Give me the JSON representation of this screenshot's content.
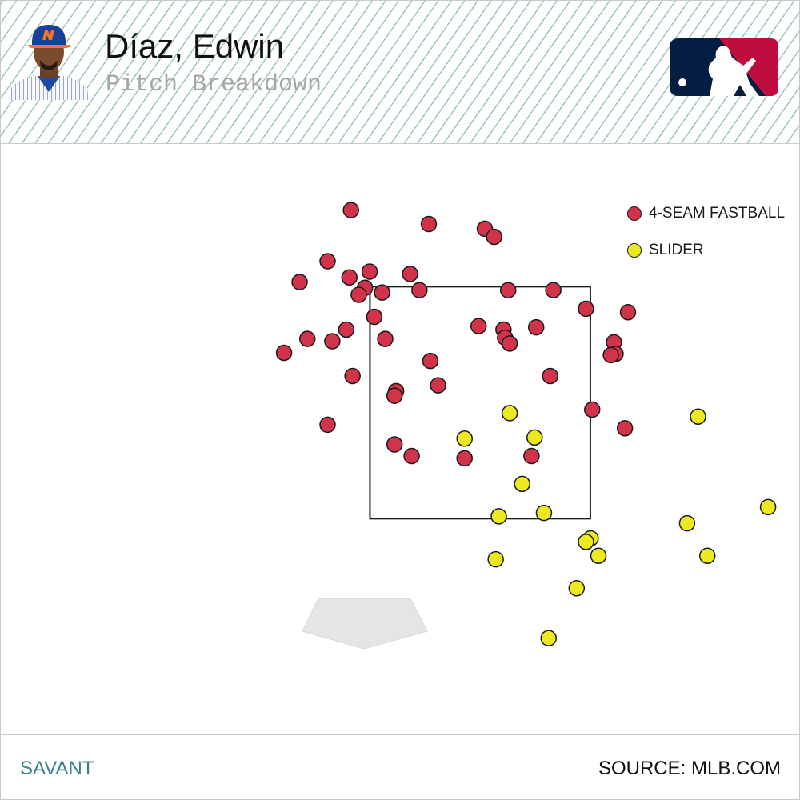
{
  "header": {
    "player_name": "Díaz, Edwin",
    "subtitle": "Pitch Breakdown",
    "logo_icon": "mlb-logo-icon",
    "avatar_icon": "player-headshot-icon"
  },
  "colors": {
    "fastball": "#d1334a",
    "slider": "#ede921",
    "stroke": "#1a1a1a",
    "plate": "#e5e5e5",
    "logo_blue": "#041e42",
    "logo_red": "#bf0d3e",
    "savant": "#3b8087"
  },
  "footer": {
    "left": "SAVANT",
    "right": "SOURCE: MLB.COM"
  },
  "chart_data": {
    "type": "scatter",
    "x_unit": "ft",
    "y_unit": "ft",
    "xlim": [
      -3.08,
      2.05
    ],
    "ylim": [
      -0.36,
      4.73
    ],
    "strike_zone": {
      "x": [
        -0.708,
        0.708
      ],
      "y": [
        1.5,
        3.5
      ]
    },
    "legend": {
      "position": "top-right"
    },
    "series": [
      {
        "name": "4-SEAM FASTBALL",
        "color": "#d1334a",
        "points": [
          [
            -0.83,
            4.16
          ],
          [
            -0.33,
            4.04
          ],
          [
            0.03,
            4.0
          ],
          [
            0.09,
            3.93
          ],
          [
            -0.98,
            3.72
          ],
          [
            -0.71,
            3.63
          ],
          [
            -0.45,
            3.61
          ],
          [
            -0.84,
            3.58
          ],
          [
            -1.16,
            3.54
          ],
          [
            -0.74,
            3.49
          ],
          [
            -0.63,
            3.45
          ],
          [
            -0.78,
            3.43
          ],
          [
            -0.39,
            3.47
          ],
          [
            0.18,
            3.47
          ],
          [
            0.47,
            3.47
          ],
          [
            0.68,
            3.31
          ],
          [
            0.95,
            3.28
          ],
          [
            -0.68,
            3.24
          ],
          [
            -0.86,
            3.13
          ],
          [
            -0.01,
            3.16
          ],
          [
            0.15,
            3.13
          ],
          [
            0.36,
            3.15
          ],
          [
            -0.95,
            3.03
          ],
          [
            0.16,
            3.06
          ],
          [
            0.19,
            3.01
          ],
          [
            -0.61,
            3.05
          ],
          [
            -1.11,
            3.05
          ],
          [
            -1.26,
            2.93
          ],
          [
            0.86,
            3.02
          ],
          [
            0.87,
            2.92
          ],
          [
            -0.32,
            2.86
          ],
          [
            0.84,
            2.91
          ],
          [
            0.45,
            2.73
          ],
          [
            -0.82,
            2.73
          ],
          [
            -0.27,
            2.65
          ],
          [
            -0.54,
            2.6
          ],
          [
            -0.55,
            2.56
          ],
          [
            0.72,
            2.44
          ],
          [
            0.93,
            2.28
          ],
          [
            -0.98,
            2.31
          ],
          [
            -0.55,
            2.14
          ],
          [
            -0.44,
            2.04
          ],
          [
            -0.1,
            2.02
          ],
          [
            0.33,
            2.04
          ]
        ]
      },
      {
        "name": "SLIDER",
        "color": "#ede921",
        "points": [
          [
            0.19,
            2.41
          ],
          [
            1.4,
            2.38
          ],
          [
            -0.1,
            2.19
          ],
          [
            0.35,
            2.2
          ],
          [
            0.27,
            1.8
          ],
          [
            1.85,
            1.6
          ],
          [
            0.41,
            1.55
          ],
          [
            0.12,
            1.52
          ],
          [
            1.33,
            1.46
          ],
          [
            0.71,
            1.33
          ],
          [
            0.68,
            1.3
          ],
          [
            0.76,
            1.18
          ],
          [
            1.46,
            1.18
          ],
          [
            0.1,
            1.15
          ],
          [
            0.62,
            0.9
          ],
          [
            0.44,
            0.47
          ]
        ]
      }
    ]
  }
}
